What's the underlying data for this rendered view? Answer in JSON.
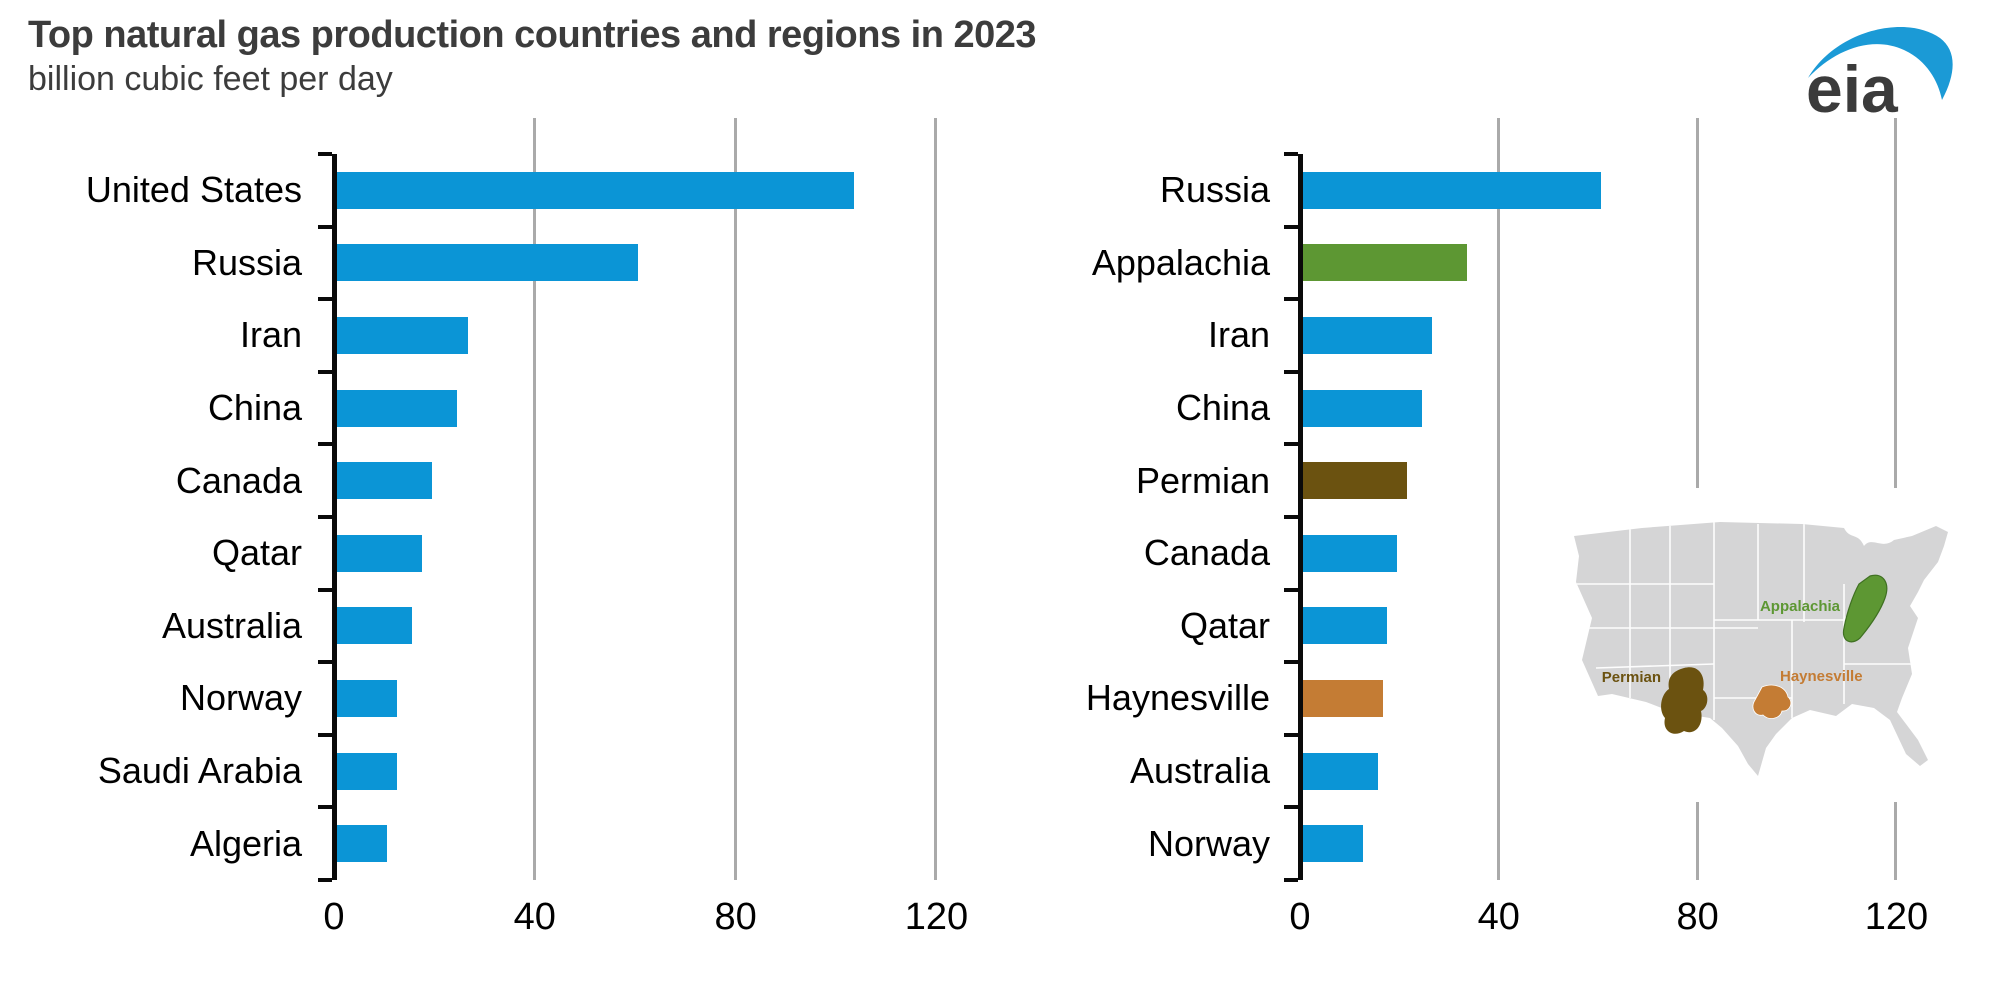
{
  "header": {
    "title": "Top natural gas production countries and regions in 2023",
    "subtitle": "billion cubic feet per day",
    "logo_text": "eia"
  },
  "colors": {
    "blue": "#0b95d6",
    "green": "#5d9733",
    "permian_brown": "#6b5210",
    "haynesville_orange": "#c47c34",
    "grid": "#aaaaaa",
    "axis": "#0a0a0a",
    "map_gray": "#d5d5d6"
  },
  "chart_data": [
    {
      "type": "bar",
      "orientation": "horizontal",
      "title": "Top natural gas production countries",
      "unit": "billion cubic feet per day",
      "categories": [
        "United States",
        "Russia",
        "Iran",
        "China",
        "Canada",
        "Qatar",
        "Australia",
        "Norway",
        "Saudi Arabia",
        "Algeria"
      ],
      "values": [
        103,
        60,
        26,
        24,
        19,
        17,
        15,
        12,
        12,
        10
      ],
      "bar_colors": [
        "blue",
        "blue",
        "blue",
        "blue",
        "blue",
        "blue",
        "blue",
        "blue",
        "blue",
        "blue"
      ],
      "xticks": [
        0,
        40,
        80,
        120
      ],
      "xlim": [
        0,
        128
      ],
      "grid": true,
      "legend": false
    },
    {
      "type": "bar",
      "orientation": "horizontal",
      "title": "Top natural gas production countries and regions",
      "unit": "billion cubic feet per day",
      "categories": [
        "Russia",
        "Appalachia",
        "Iran",
        "China",
        "Permian",
        "Canada",
        "Qatar",
        "Haynesville",
        "Australia",
        "Norway"
      ],
      "values": [
        60,
        33,
        26,
        24,
        21,
        19,
        17,
        16,
        15,
        12
      ],
      "bar_colors": [
        "blue",
        "green",
        "blue",
        "blue",
        "permian_brown",
        "blue",
        "blue",
        "haynesville_orange",
        "blue",
        "blue"
      ],
      "xticks": [
        0,
        40,
        80,
        120
      ],
      "xlim": [
        0,
        128
      ],
      "grid": true,
      "legend": false,
      "map_inset": {
        "description": "US map highlighting producing regions",
        "labels": [
          {
            "text": "Appalachia",
            "color": "green"
          },
          {
            "text": "Permian",
            "color": "permian_brown"
          },
          {
            "text": "Haynesville",
            "color": "haynesville_orange"
          }
        ]
      }
    }
  ]
}
